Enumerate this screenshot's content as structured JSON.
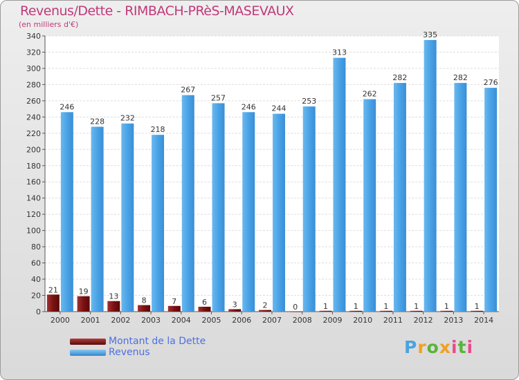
{
  "title": "Revenus/Dette - RIMBACH-PRèS-MASEVAUX",
  "subtitle": "(en milliers d'€)",
  "legend": {
    "dette_label": "Montant de la Dette",
    "revenus_label": "Revenus"
  },
  "logo_text": "Proxiti",
  "colors": {
    "dette": "#7a1212",
    "revenus": "#4aa3e6",
    "title": "#c0397a",
    "legend_text": "#4e6fe0"
  },
  "chart_data": {
    "type": "bar",
    "title": "Revenus/Dette - RIMBACH-PRèS-MASEVAUX",
    "ylabel": "(en milliers d'€)",
    "ylim": [
      0,
      340
    ],
    "ytick_step": 20,
    "grid": true,
    "legend_position": "bottom-left",
    "categories": [
      "2000",
      "2001",
      "2002",
      "2003",
      "2004",
      "2005",
      "2006",
      "2007",
      "2008",
      "2009",
      "2010",
      "2011",
      "2012",
      "2013",
      "2014"
    ],
    "series": [
      {
        "name": "Montant de la Dette",
        "values": [
          21,
          19,
          13,
          8,
          7,
          6,
          3,
          2,
          0,
          1,
          1,
          1,
          1,
          1,
          1
        ]
      },
      {
        "name": "Revenus",
        "values": [
          246,
          228,
          232,
          218,
          267,
          257,
          246,
          244,
          253,
          313,
          262,
          282,
          335,
          282,
          276
        ]
      }
    ]
  }
}
